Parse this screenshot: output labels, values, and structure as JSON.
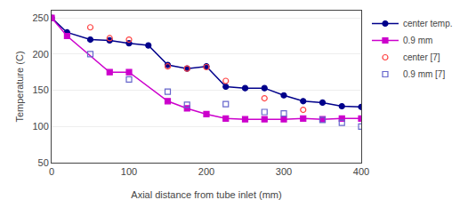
{
  "chart_data": {
    "type": "line",
    "x_label": "Axial distance from tube inlet (mm)",
    "y_label": "Temperature (C)",
    "series": [
      {
        "name": "center temp.",
        "color": "#00008B",
        "marker": "circle",
        "line_style": "solid",
        "x": [
          0,
          20,
          50,
          75,
          100,
          125,
          150,
          175,
          200,
          225,
          250,
          275,
          300,
          325,
          350,
          375,
          400
        ],
        "values": [
          250,
          230,
          220,
          219,
          215,
          212,
          185,
          180,
          183,
          155,
          153,
          153,
          143,
          135,
          133,
          128,
          127
        ]
      },
      {
        "name": "0.9 mm",
        "color": "#CC00CC",
        "marker": "square",
        "line_style": "solid",
        "x": [
          0,
          20,
          75,
          100,
          150,
          175,
          200,
          225,
          250,
          275,
          300,
          325,
          350,
          375,
          400
        ],
        "values": [
          250,
          225,
          175,
          175,
          135,
          125,
          117,
          111,
          110,
          110,
          110,
          111,
          110,
          111,
          111
        ]
      },
      {
        "name": "center [7]",
        "color": "#FF4444",
        "marker": "circle-open",
        "line_style": "none",
        "x": [
          50,
          75,
          100,
          150,
          175,
          200,
          225,
          275,
          325
        ],
        "values": [
          237,
          222,
          220,
          183,
          180,
          182,
          163,
          139,
          123
        ]
      },
      {
        "name": "0.9 mm [7]",
        "color": "#6666CC",
        "marker": "square-open",
        "line_style": "none",
        "x": [
          50,
          100,
          150,
          175,
          225,
          275,
          300,
          350,
          375,
          400
        ],
        "values": [
          200,
          165,
          148,
          130,
          131,
          120,
          118,
          109,
          105,
          100
        ]
      }
    ],
    "xlim": [
      0,
      400
    ],
    "ylim": [
      50,
      260
    ],
    "xticks": [
      0,
      100,
      200,
      300,
      400
    ],
    "yticks": [
      50,
      100,
      150,
      200,
      250
    ],
    "grid": "y",
    "legend": "upper right"
  }
}
